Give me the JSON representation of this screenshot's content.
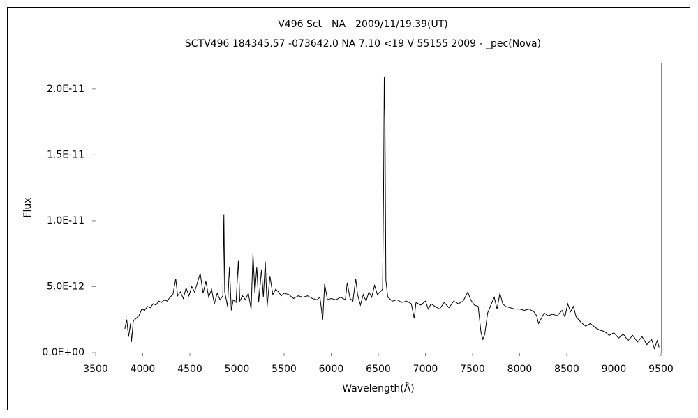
{
  "chart_data": {
    "type": "line",
    "title": "V496 Sct　NA　2009/11/19.39(UT)",
    "subtitle": "SCTV496 184345.57 -073642.0 NA 7.10 <19 V 55155 2009 - _pec(Nova)",
    "x_label": "Wavelength(Å)",
    "y_label": "Flux",
    "xlim": [
      3500,
      9500
    ],
    "xticks": [
      3500,
      4000,
      4500,
      5000,
      5500,
      6000,
      6500,
      7000,
      7500,
      8000,
      8500,
      9000,
      9500
    ],
    "ylim": [
      0,
      2.2e-11
    ],
    "yticks": [
      {
        "value": 0,
        "label": "0.0E+00"
      },
      {
        "value": 5e-12,
        "label": "5.0E-12"
      },
      {
        "value": 1e-11,
        "label": "1.0E-11"
      },
      {
        "value": 1.5e-11,
        "label": "1.5E-11"
      },
      {
        "value": 2e-11,
        "label": "2.0E-11"
      }
    ],
    "grid": false,
    "series": [
      {
        "color": "#000000",
        "x": [
          3810,
          3830,
          3850,
          3870,
          3880,
          3900,
          3930,
          3960,
          3990,
          4020,
          4050,
          4080,
          4110,
          4140,
          4170,
          4200,
          4230,
          4260,
          4290,
          4320,
          4350,
          4370,
          4400,
          4430,
          4460,
          4490,
          4520,
          4550,
          4580,
          4610,
          4640,
          4670,
          4700,
          4730,
          4760,
          4790,
          4820,
          4850,
          4861,
          4870,
          4900,
          4920,
          4940,
          4960,
          4990,
          5015,
          5030,
          5060,
          5090,
          5120,
          5150,
          5170,
          5190,
          5210,
          5230,
          5260,
          5280,
          5300,
          5320,
          5350,
          5380,
          5410,
          5440,
          5470,
          5500,
          5550,
          5600,
          5650,
          5700,
          5750,
          5800,
          5850,
          5880,
          5910,
          5930,
          5960,
          6000,
          6050,
          6100,
          6150,
          6170,
          6200,
          6230,
          6260,
          6280,
          6310,
          6340,
          6370,
          6400,
          6430,
          6460,
          6490,
          6520,
          6545,
          6555,
          6563,
          6570,
          6580,
          6600,
          6650,
          6700,
          6750,
          6800,
          6850,
          6880,
          6900,
          6950,
          7000,
          7030,
          7060,
          7100,
          7150,
          7200,
          7250,
          7300,
          7350,
          7400,
          7450,
          7480,
          7520,
          7560,
          7590,
          7610,
          7630,
          7660,
          7700,
          7730,
          7760,
          7790,
          7820,
          7850,
          7900,
          7950,
          8000,
          8050,
          8100,
          8150,
          8180,
          8200,
          8230,
          8260,
          8300,
          8350,
          8400,
          8450,
          8480,
          8510,
          8540,
          8570,
          8600,
          8650,
          8700,
          8750,
          8800,
          8850,
          8900,
          8950,
          9000,
          9050,
          9100,
          9150,
          9200,
          9250,
          9300,
          9350,
          9400,
          9430,
          9460,
          9480
        ],
        "values": [
          1.8e-12,
          2.5e-12,
          1.2e-12,
          2.2e-12,
          8e-13,
          2.4e-12,
          2.6e-12,
          2.8e-12,
          3.3e-12,
          3.2e-12,
          3.5e-12,
          3.4e-12,
          3.7e-12,
          3.6e-12,
          3.9e-12,
          3.8e-12,
          4e-12,
          3.9e-12,
          4.2e-12,
          4.4e-12,
          5.6e-12,
          4.3e-12,
          4.6e-12,
          4.1e-12,
          4.9e-12,
          4.3e-12,
          5e-12,
          4.6e-12,
          5.3e-12,
          6e-12,
          4.5e-12,
          5.4e-12,
          4.2e-12,
          4.8e-12,
          3.7e-12,
          4.5e-12,
          4e-12,
          4.3e-12,
          1.05e-11,
          4.6e-12,
          3.5e-12,
          6.5e-12,
          3.2e-12,
          4e-12,
          3.8e-12,
          7e-12,
          3.9e-12,
          4.3e-12,
          4e-12,
          4.5e-12,
          3.3e-12,
          7.5e-12,
          4.5e-12,
          6.5e-12,
          3.8e-12,
          6.3e-12,
          4.2e-12,
          6.9e-12,
          3.5e-12,
          5.8e-12,
          4.4e-12,
          4.8e-12,
          4.6e-12,
          4.3e-12,
          4.5e-12,
          4.4e-12,
          4.1e-12,
          4.3e-12,
          4.2e-12,
          4.3e-12,
          4.1e-12,
          4e-12,
          4.2e-12,
          2.5e-12,
          5.2e-12,
          4e-12,
          4.1e-12,
          4e-12,
          4.2e-12,
          4e-12,
          5.3e-12,
          4.1e-12,
          3.9e-12,
          5.6e-12,
          4.4e-12,
          3.6e-12,
          4.4e-12,
          3.9e-12,
          4.6e-12,
          4.2e-12,
          5.1e-12,
          4.4e-12,
          4.6e-12,
          4.8e-12,
          1.2e-11,
          2.09e-11,
          1.8e-11,
          5.5e-12,
          4.2e-12,
          3.9e-12,
          4e-12,
          3.8e-12,
          3.9e-12,
          3.7e-12,
          2.6e-12,
          3.8e-12,
          3.6e-12,
          3.9e-12,
          3.3e-12,
          3.7e-12,
          3.5e-12,
          3.3e-12,
          3.8e-12,
          3.4e-12,
          3.9e-12,
          3.7e-12,
          3.9e-12,
          4.6e-12,
          4e-12,
          3.6e-12,
          3.5e-12,
          1.5e-12,
          1e-12,
          1.4e-12,
          3e-12,
          3.7e-12,
          4.2e-12,
          3.3e-12,
          4.5e-12,
          3.7e-12,
          3.5e-12,
          3.4e-12,
          3.3e-12,
          3.3e-12,
          3.2e-12,
          3.3e-12,
          3.1e-12,
          2.8e-12,
          2.2e-12,
          2.6e-12,
          3e-12,
          2.8e-12,
          2.9e-12,
          2.8e-12,
          3.2e-12,
          2.7e-12,
          3.7e-12,
          3.1e-12,
          3.5e-12,
          2.7e-12,
          2.3e-12,
          2e-12,
          2.2e-12,
          1.9e-12,
          1.7e-12,
          1.6e-12,
          1.3e-12,
          1.5e-12,
          1.1e-12,
          1.4e-12,
          9e-13,
          1.3e-12,
          8e-13,
          1.2e-12,
          6e-13,
          1e-12,
          3e-13,
          9e-13,
          4e-13
        ]
      }
    ]
  }
}
